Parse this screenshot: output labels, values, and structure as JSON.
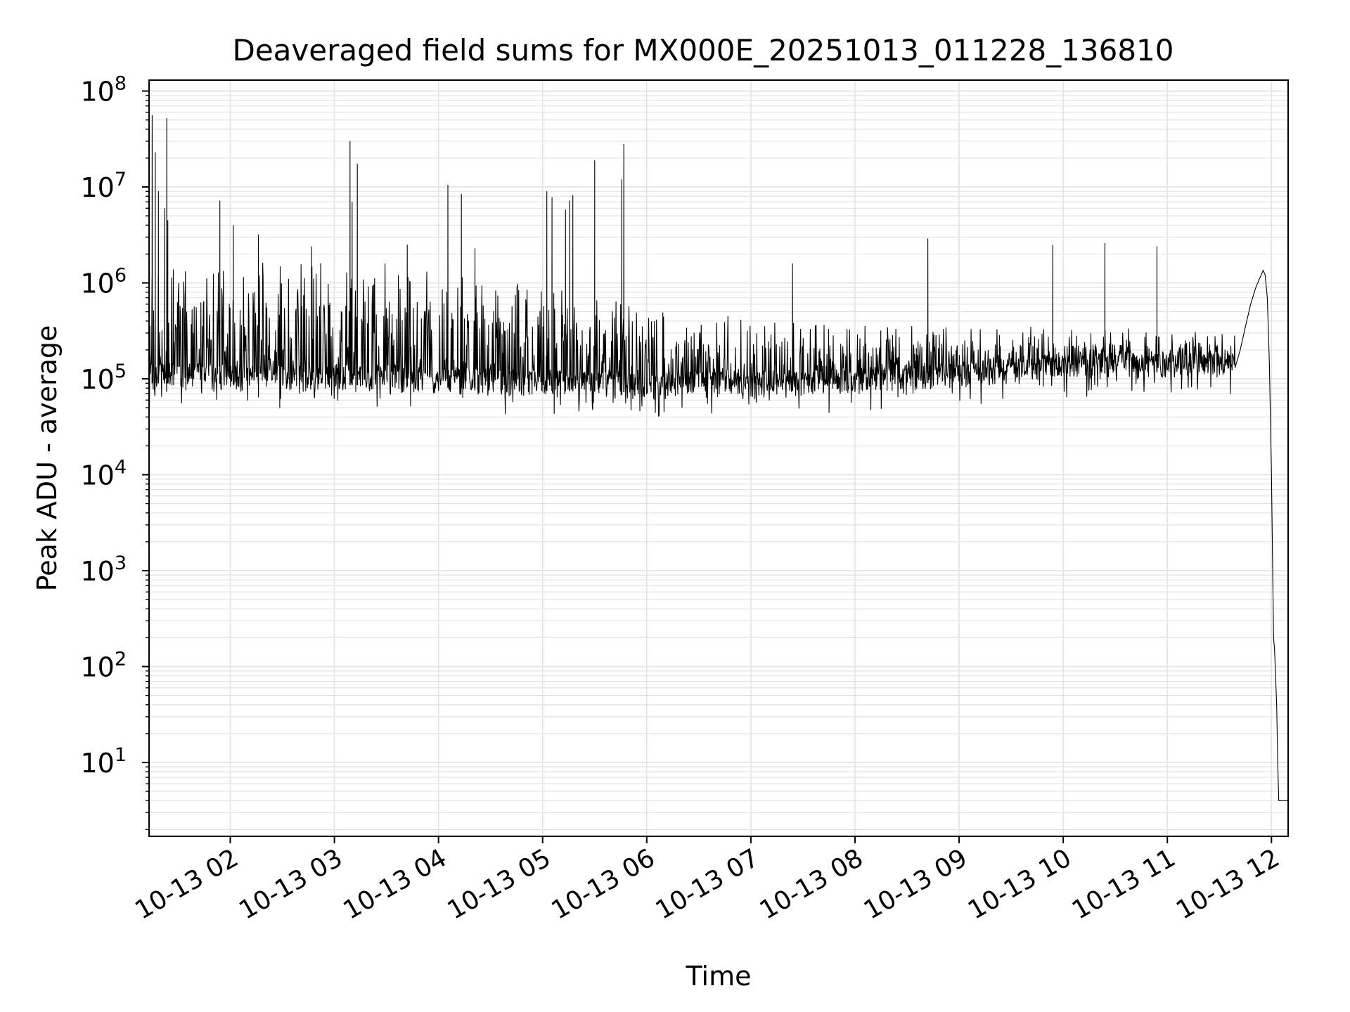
{
  "chart_data": {
    "type": "line",
    "title": "Deaveraged field sums for MX000E_20251013_011228_136810",
    "xlabel": "Time",
    "ylabel": "Peak ADU - average",
    "yscale": "log",
    "ylim": [
      1.7,
      130000000
    ],
    "xlim_hours": [
      1.22,
      12.16
    ],
    "grid": true,
    "legend": "none",
    "line_color": "#000000",
    "grid_color": "#e3e3e3",
    "y_ticks": [
      {
        "value": 10,
        "base": "10",
        "exp": "1"
      },
      {
        "value": 100,
        "base": "10",
        "exp": "2"
      },
      {
        "value": 1000,
        "base": "10",
        "exp": "3"
      },
      {
        "value": 10000,
        "base": "10",
        "exp": "4"
      },
      {
        "value": 100000,
        "base": "10",
        "exp": "5"
      },
      {
        "value": 1000000,
        "base": "10",
        "exp": "6"
      },
      {
        "value": 10000000,
        "base": "10",
        "exp": "7"
      },
      {
        "value": 100000000,
        "base": "10",
        "exp": "8"
      }
    ],
    "x_ticks": [
      {
        "hour": 2,
        "label": "10-13 02"
      },
      {
        "hour": 3,
        "label": "10-13 03"
      },
      {
        "hour": 4,
        "label": "10-13 04"
      },
      {
        "hour": 5,
        "label": "10-13 05"
      },
      {
        "hour": 6,
        "label": "10-13 06"
      },
      {
        "hour": 7,
        "label": "10-13 07"
      },
      {
        "hour": 8,
        "label": "10-13 08"
      },
      {
        "hour": 9,
        "label": "10-13 09"
      },
      {
        "hour": 10,
        "label": "10-13 10"
      },
      {
        "hour": 11,
        "label": "10-13 11"
      },
      {
        "hour": 12,
        "label": "10-13 12"
      }
    ],
    "noise_profile": [
      {
        "hour": 1.22,
        "base": 90000,
        "high": 1500000
      },
      {
        "hour": 3.5,
        "base": 85000,
        "high": 1400000
      },
      {
        "hour": 5.0,
        "base": 75000,
        "high": 900000
      },
      {
        "hour": 6.0,
        "base": 72000,
        "high": 500000
      },
      {
        "hour": 7.5,
        "base": 75000,
        "high": 350000
      },
      {
        "hour": 9.0,
        "base": 95000,
        "high": 350000
      },
      {
        "hour": 10.5,
        "base": 115000,
        "high": 320000
      },
      {
        "hour": 11.65,
        "base": 120000,
        "high": 300000
      }
    ],
    "spikes": [
      {
        "hour": 1.25,
        "value": 56000000
      },
      {
        "hour": 1.28,
        "value": 23000000
      },
      {
        "hour": 1.31,
        "value": 9000000
      },
      {
        "hour": 1.37,
        "value": 6000000
      },
      {
        "hour": 1.39,
        "value": 52000000
      },
      {
        "hour": 1.4,
        "value": 4500000
      },
      {
        "hour": 1.9,
        "value": 7200000
      },
      {
        "hour": 2.03,
        "value": 4000000
      },
      {
        "hour": 2.27,
        "value": 3200000
      },
      {
        "hour": 2.78,
        "value": 2400000
      },
      {
        "hour": 3.15,
        "value": 30000000
      },
      {
        "hour": 3.17,
        "value": 7000000
      },
      {
        "hour": 3.22,
        "value": 17500000
      },
      {
        "hour": 3.7,
        "value": 2500000
      },
      {
        "hour": 4.09,
        "value": 10500000
      },
      {
        "hour": 4.22,
        "value": 8500000
      },
      {
        "hour": 4.35,
        "value": 2300000
      },
      {
        "hour": 5.04,
        "value": 9000000
      },
      {
        "hour": 5.09,
        "value": 7800000
      },
      {
        "hour": 5.22,
        "value": 5800000
      },
      {
        "hour": 5.26,
        "value": 7200000
      },
      {
        "hour": 5.29,
        "value": 8200000
      },
      {
        "hour": 5.5,
        "value": 19000000
      },
      {
        "hour": 5.76,
        "value": 12000000
      },
      {
        "hour": 5.78,
        "value": 28000000
      },
      {
        "hour": 7.4,
        "value": 1600000
      },
      {
        "hour": 8.7,
        "value": 2900000
      },
      {
        "hour": 9.9,
        "value": 2500000
      },
      {
        "hour": 10.4,
        "value": 2600000
      },
      {
        "hour": 10.9,
        "value": 2400000
      }
    ],
    "tail": [
      {
        "hour": 11.65,
        "value": 130000
      },
      {
        "hour": 11.7,
        "value": 200000
      },
      {
        "hour": 11.75,
        "value": 350000
      },
      {
        "hour": 11.8,
        "value": 600000
      },
      {
        "hour": 11.85,
        "value": 900000
      },
      {
        "hour": 11.9,
        "value": 1200000
      },
      {
        "hour": 11.92,
        "value": 1350000
      },
      {
        "hour": 11.94,
        "value": 1200000
      },
      {
        "hour": 11.96,
        "value": 700000
      },
      {
        "hour": 11.98,
        "value": 150000
      },
      {
        "hour": 12.0,
        "value": 10000
      },
      {
        "hour": 12.02,
        "value": 200
      },
      {
        "hour": 12.03,
        "value": 150
      },
      {
        "hour": 12.05,
        "value": 40
      },
      {
        "hour": 12.06,
        "value": 10
      },
      {
        "hour": 12.07,
        "value": 4
      },
      {
        "hour": 12.16,
        "value": 4
      }
    ]
  }
}
